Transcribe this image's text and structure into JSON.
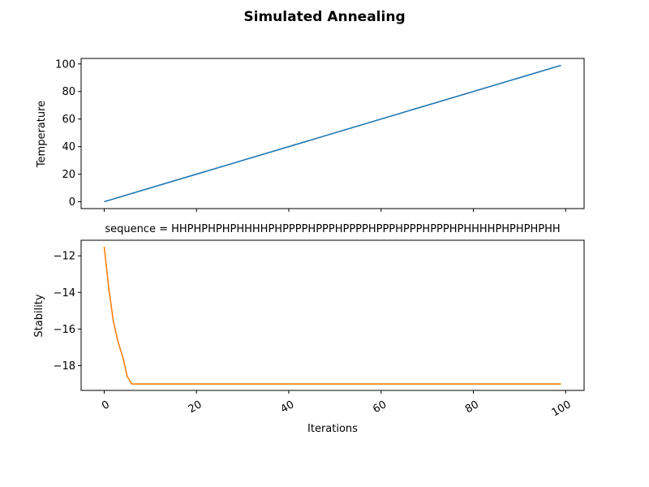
{
  "figure_title": "Simulated Annealing",
  "chart_data": [
    {
      "type": "line",
      "title": "",
      "xlabel": "",
      "ylabel": "Temperature",
      "xlim": [
        -5,
        104
      ],
      "ylim": [
        -5,
        104
      ],
      "yticks": [
        0,
        20,
        40,
        60,
        80,
        100
      ],
      "xticks": [
        0,
        20,
        40,
        60,
        80,
        100
      ],
      "show_xtick_labels": false,
      "grid": false,
      "color": "#1f77b4",
      "series": [
        {
          "x": [
            0,
            99
          ],
          "y": [
            0,
            99
          ]
        }
      ]
    },
    {
      "type": "line",
      "title": "sequence = HHPHPHPHPHHHHPHPPPPHPPPHPPPPHPPPHPPPHPPPHPHHHHPHPHPHPHH",
      "xlabel": "Iterations",
      "ylabel": "Stability",
      "xlim": [
        -5,
        104
      ],
      "ylim": [
        -19.35,
        -11.15
      ],
      "yticks": [
        -12,
        -14,
        -16,
        -18
      ],
      "xticks": [
        0,
        20,
        40,
        60,
        80,
        100
      ],
      "show_xtick_labels": true,
      "xtick_rotation": 30,
      "grid": false,
      "color": "#ff7f0e",
      "series": [
        {
          "x": [
            0,
            1,
            2,
            3,
            4,
            5,
            6,
            99
          ],
          "y": [
            -11.5,
            -13.8,
            -15.6,
            -16.7,
            -17.5,
            -18.6,
            -19,
            -19
          ]
        }
      ]
    }
  ]
}
